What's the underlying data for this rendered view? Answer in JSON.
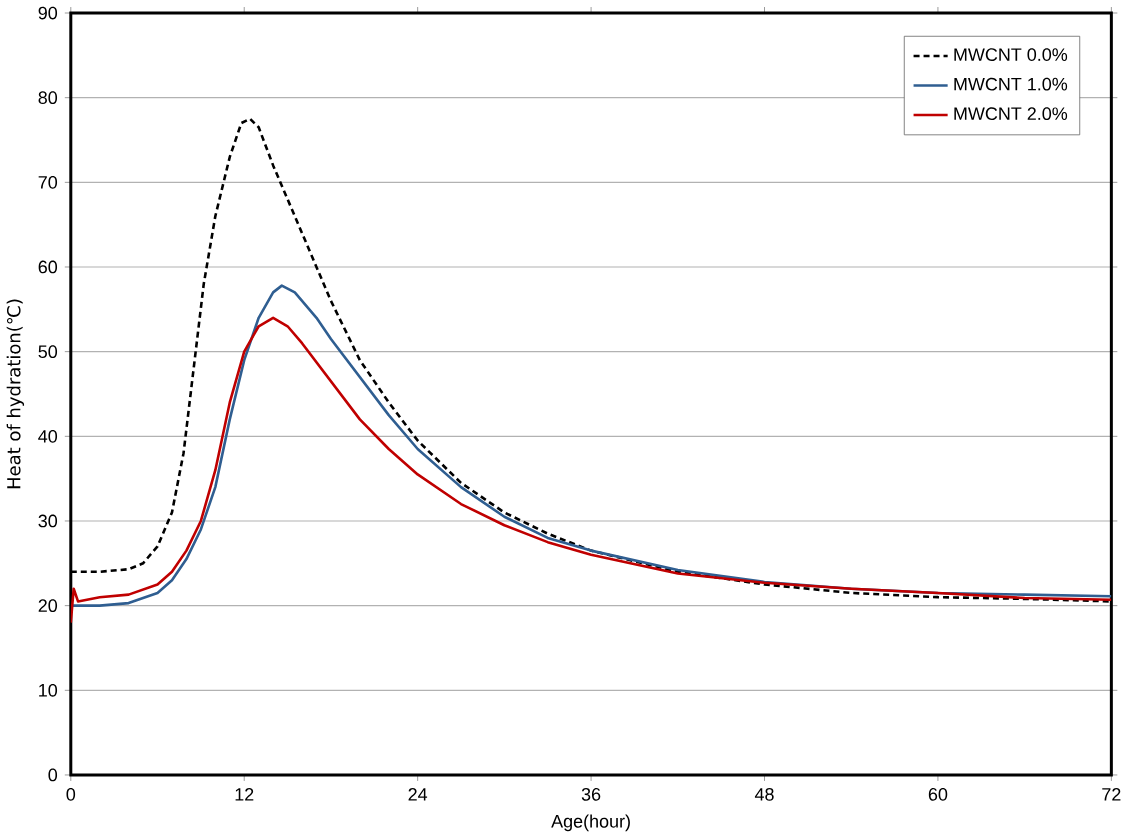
{
  "chart_data": {
    "type": "line",
    "xlabel": "Age(hour)",
    "ylabel": "Heat of hydration(℃)",
    "xlim": [
      0,
      72
    ],
    "ylim": [
      0,
      90
    ],
    "xticks": [
      0,
      12,
      24,
      36,
      48,
      60,
      72
    ],
    "yticks": [
      0,
      10,
      20,
      30,
      40,
      50,
      60,
      70,
      80,
      90
    ],
    "grid": "y",
    "legend": "top right",
    "marker": "none",
    "series": [
      {
        "name": "MWCNT 0.0%",
        "color": "#000000",
        "line_style": "dashed",
        "x": [
          0,
          2,
          4,
          5,
          6,
          7,
          7.8,
          8.5,
          9.2,
          10,
          11,
          11.8,
          12.4,
          13,
          14,
          15,
          16,
          18,
          20,
          22,
          24,
          27,
          30,
          33,
          36,
          42,
          48,
          54,
          60,
          66,
          72
        ],
        "values": [
          24,
          24,
          24.3,
          25,
          27,
          31,
          38,
          48,
          58,
          66,
          73,
          77,
          77.5,
          76.5,
          72,
          68,
          64,
          56,
          49,
          44,
          39.5,
          34.5,
          31,
          28.5,
          26.5,
          24,
          22.5,
          21.5,
          21,
          20.8,
          20.5
        ]
      },
      {
        "name": "MWCNT 1.0%",
        "color": "#2f5e91",
        "line_style": "solid",
        "x": [
          0,
          2,
          4,
          6,
          7,
          8,
          9,
          10,
          11,
          12,
          13,
          14,
          14.6,
          15.5,
          17,
          18,
          20,
          22,
          24,
          27,
          30,
          33,
          36,
          42,
          48,
          54,
          60,
          66,
          72
        ],
        "values": [
          20,
          20,
          20.3,
          21.5,
          23,
          25.5,
          29,
          34,
          42,
          49,
          54,
          57,
          57.8,
          57,
          54,
          51.5,
          47,
          42.5,
          38.5,
          34,
          30.5,
          28,
          26.5,
          24.2,
          22.8,
          22,
          21.5,
          21.3,
          21.1
        ]
      },
      {
        "name": "MWCNT 2.0%",
        "color": "#c00000",
        "line_style": "solid",
        "x": [
          0,
          0.2,
          0.5,
          2,
          4,
          6,
          7,
          8,
          9,
          10,
          11,
          12,
          13,
          14,
          15,
          16,
          18,
          20,
          22,
          24,
          27,
          30,
          33,
          36,
          42,
          48,
          54,
          60,
          66,
          72
        ],
        "values": [
          18,
          22,
          20.5,
          21,
          21.3,
          22.5,
          24,
          26.5,
          30,
          36,
          44,
          50,
          53,
          54,
          53,
          51,
          46.5,
          42,
          38.5,
          35.5,
          32,
          29.5,
          27.5,
          26,
          23.8,
          22.7,
          22,
          21.5,
          20.9,
          20.7
        ]
      }
    ]
  }
}
